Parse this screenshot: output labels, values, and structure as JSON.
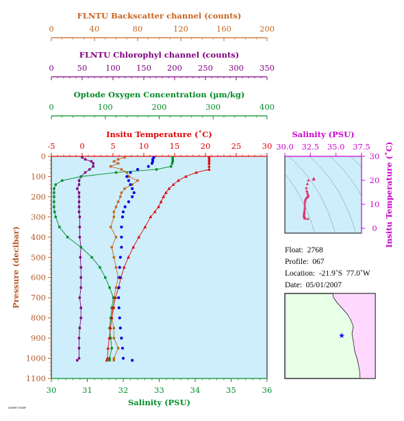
{
  "colors": {
    "backscatter": "#c8641e",
    "chlorophyll": "#800080",
    "oxygen": "#008c28",
    "temperature": "#e00000",
    "salinity": "#0000e6",
    "salinity_inset": "#cc00cc",
    "pressure_axis": "#b45a28",
    "plot_bg": "#cdeefa",
    "map_land": "#ffd8ff",
    "map_ocean": "#e8ffe8",
    "float_marker": "#0000ff"
  },
  "axes": {
    "backscatter": {
      "title": "FLNTU Backscatter channel (counts)",
      "ticks": [
        "0",
        "40",
        "80",
        "120",
        "160",
        "200"
      ],
      "range": [
        0,
        200
      ]
    },
    "chlorophyll": {
      "title": "FLNTU Chlorophyl channel (counts)",
      "ticks": [
        "0",
        "50",
        "100",
        "150",
        "200",
        "250",
        "300",
        "350"
      ],
      "range": [
        0,
        350
      ]
    },
    "oxygen": {
      "title": "Optode Oxygen Concentration (µm/kg)",
      "ticks": [
        "0",
        "100",
        "200",
        "300",
        "400"
      ],
      "range": [
        0,
        400
      ]
    },
    "temperature": {
      "title": "Insitu Temperature (˚C)",
      "ticks": [
        "-5",
        "0",
        "5",
        "10",
        "15",
        "20",
        "25",
        "30"
      ],
      "range": [
        -5,
        30
      ]
    },
    "salinity": {
      "title": "Salinity (PSU)",
      "ticks": [
        "30",
        "31",
        "32",
        "33",
        "34",
        "35",
        "36"
      ],
      "range": [
        30,
        36
      ]
    },
    "pressure": {
      "title": "Pressure (decibar)",
      "ticks": [
        "0",
        "100",
        "200",
        "300",
        "400",
        "500",
        "600",
        "700",
        "800",
        "900",
        "1000",
        "1100"
      ],
      "range": [
        0,
        1100
      ]
    },
    "inset_salinity": {
      "title": "Salinity (PSU)",
      "ticks": [
        "30.0",
        "32.5",
        "35.0",
        "37.5"
      ],
      "range": [
        30,
        37.5
      ]
    },
    "inset_temperature": {
      "title": "Insitu Temperature (˚C)",
      "ticks": [
        "0",
        "10",
        "20",
        "30"
      ],
      "range": [
        -2,
        30
      ]
    }
  },
  "info": {
    "float": "Float:  2768",
    "profile": "Profile:  067",
    "location": "Location:  -21.9˚S  77.0˚W",
    "date": "Date:  05/01/2007"
  },
  "footer_stamp": "DUMMY STAMP",
  "chart_data": {
    "type": "line",
    "pressure_decibar": [
      5,
      15,
      25,
      35,
      50,
      65,
      80,
      100,
      120,
      140,
      160,
      180,
      200,
      225,
      250,
      275,
      300,
      350,
      400,
      450,
      500,
      550,
      600,
      650,
      700,
      750,
      800,
      850,
      900,
      950,
      1000,
      1010
    ],
    "series": [
      {
        "name": "Insitu Temperature",
        "unit": "˚C",
        "values": [
          20.6,
          20.6,
          20.6,
          20.6,
          20.6,
          20.6,
          18.5,
          16.8,
          15.6,
          14.8,
          14.1,
          13.6,
          13.2,
          12.8,
          12.4,
          11.8,
          11.1,
          10.2,
          9.2,
          8.3,
          7.5,
          6.8,
          6.3,
          5.9,
          5.4,
          5.0,
          4.8,
          4.6,
          4.4,
          4.2,
          4.1,
          4.0
        ]
      },
      {
        "name": "Salinity",
        "unit": "PSU",
        "values": [
          32.85,
          32.82,
          32.82,
          32.8,
          32.7,
          32.4,
          32.2,
          32.1,
          32.15,
          32.2,
          32.25,
          32.3,
          32.25,
          32.15,
          32.05,
          32.0,
          31.98,
          31.95,
          31.95,
          31.95,
          31.92,
          31.9,
          31.9,
          31.88,
          31.87,
          31.88,
          31.9,
          31.92,
          31.95,
          31.98,
          32.0,
          32.25
        ]
      },
      {
        "name": "Oxygen",
        "unit": "µm/kg",
        "values": [
          225,
          225,
          225,
          224,
          222,
          195,
          120,
          55,
          20,
          8,
          5,
          5,
          5,
          5,
          5,
          6,
          8,
          15,
          30,
          55,
          75,
          90,
          100,
          108,
          115,
          112,
          110,
          108,
          110,
          112,
          108,
          108
        ]
      },
      {
        "name": "Chlorophyl",
        "unit": "counts",
        "values": [
          50,
          55,
          65,
          68,
          68,
          62,
          55,
          48,
          45,
          45,
          42,
          45,
          45,
          45,
          45,
          45,
          46,
          46,
          46,
          48,
          47,
          48,
          48,
          48,
          46,
          48,
          48,
          46,
          45,
          45,
          45,
          42
        ]
      },
      {
        "name": "Backscatter",
        "unit": "counts",
        "values": [
          68,
          62,
          58,
          62,
          55,
          65,
          70,
          72,
          80,
          75,
          68,
          65,
          64,
          62,
          60,
          58,
          58,
          55,
          60,
          56,
          58,
          60,
          62,
          60,
          58,
          58,
          56,
          58,
          58,
          62,
          58,
          58
        ]
      }
    ],
    "inset_ts": {
      "xlabel": "Salinity (PSU)",
      "ylabel": "Insitu Temperature (˚C)",
      "points": [
        [
          32.8,
          20.6
        ],
        [
          32.85,
          20.6
        ],
        [
          32.82,
          20.3
        ],
        [
          32.3,
          20.0
        ],
        [
          32.2,
          18.5
        ],
        [
          32.1,
          16.8
        ],
        [
          32.15,
          15.6
        ],
        [
          32.2,
          14.8
        ],
        [
          32.25,
          14.1
        ],
        [
          32.3,
          13.6
        ],
        [
          32.25,
          13.2
        ],
        [
          32.15,
          12.8
        ],
        [
          32.05,
          12.4
        ],
        [
          32.0,
          11.8
        ],
        [
          31.98,
          11.1
        ],
        [
          31.95,
          10.2
        ],
        [
          31.95,
          9.2
        ],
        [
          31.95,
          8.3
        ],
        [
          31.92,
          7.5
        ],
        [
          31.9,
          6.8
        ],
        [
          31.9,
          6.3
        ],
        [
          31.88,
          5.9
        ],
        [
          31.87,
          5.4
        ],
        [
          31.88,
          5.0
        ],
        [
          31.9,
          4.8
        ],
        [
          31.92,
          4.6
        ],
        [
          31.95,
          4.4
        ],
        [
          31.98,
          4.2
        ],
        [
          32.0,
          4.1
        ],
        [
          32.25,
          4.0
        ]
      ]
    }
  }
}
